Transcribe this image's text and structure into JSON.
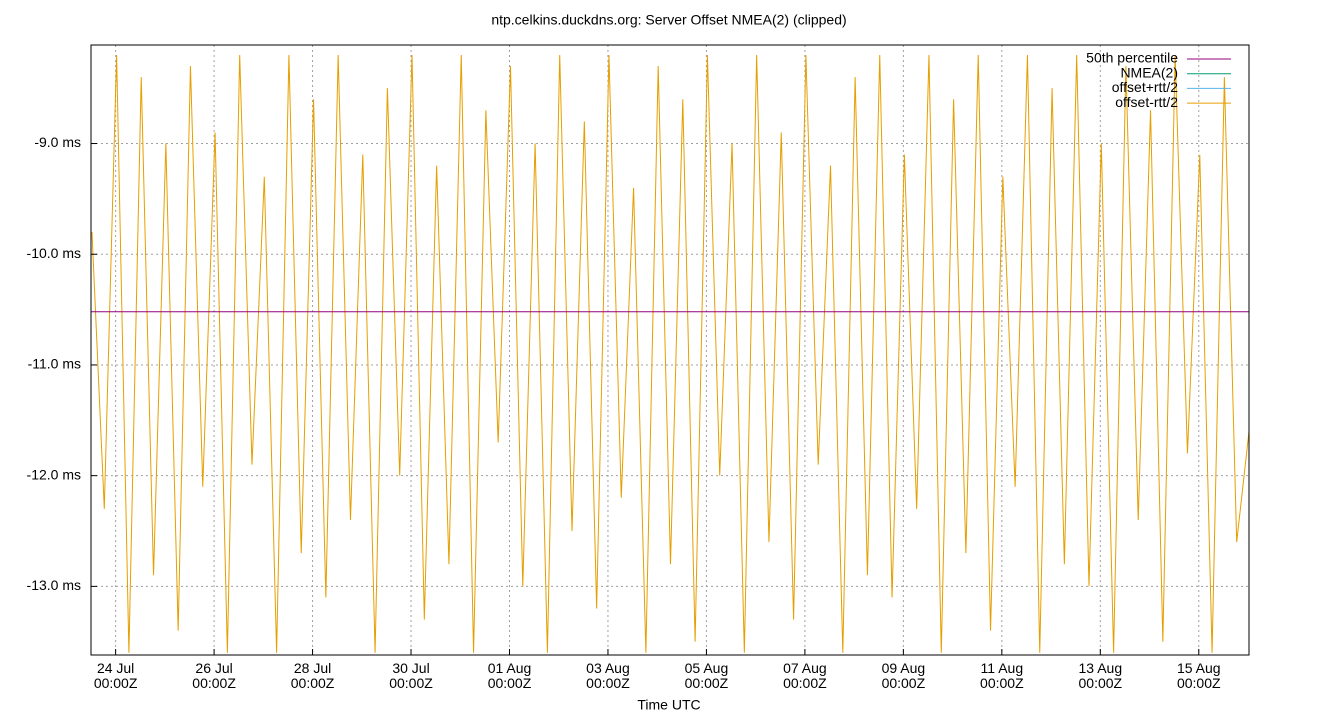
{
  "chart_data": {
    "type": "line",
    "title": "ntp.celkins.duckdns.org: Server Offset NMEA(2) (clipped)",
    "x_label": "Time UTC",
    "xlim": [
      23.5,
      47.02
    ],
    "xticks": [
      {
        "value": 24,
        "label": "24 Jul\n00:00Z"
      },
      {
        "value": 26,
        "label": "26 Jul\n00:00Z"
      },
      {
        "value": 28,
        "label": "28 Jul\n00:00Z"
      },
      {
        "value": 30,
        "label": "30 Jul\n00:00Z"
      },
      {
        "value": 32,
        "label": "01 Aug\n00:00Z"
      },
      {
        "value": 34,
        "label": "03 Aug\n00:00Z"
      },
      {
        "value": 36,
        "label": "05 Aug\n00:00Z"
      },
      {
        "value": 38,
        "label": "07 Aug\n00:00Z"
      },
      {
        "value": 40,
        "label": "09 Aug\n00:00Z"
      },
      {
        "value": 42,
        "label": "11 Aug\n00:00Z"
      },
      {
        "value": 44,
        "label": "13 Aug\n00:00Z"
      },
      {
        "value": 46,
        "label": "15 Aug\n00:00Z"
      }
    ],
    "ylim": [
      -13.62,
      -8.11
    ],
    "yticks": [
      {
        "value": -9.0,
        "label": "-9.0 ms"
      },
      {
        "value": -10.0,
        "label": "-10.0 ms"
      },
      {
        "value": -11.0,
        "label": "-11.0 ms"
      },
      {
        "value": -12.0,
        "label": "-12.0 ms"
      },
      {
        "value": -13.0,
        "label": "-13.0 ms"
      }
    ],
    "grid": true,
    "legend": "top-right",
    "series": [
      {
        "name": "50th percentile",
        "color": "#94007a",
        "x": [
          23.5,
          47.02
        ],
        "values": [
          -10.52,
          -10.52
        ]
      },
      {
        "name": "NMEA(2)",
        "color": "#009e73",
        "x": [],
        "values": []
      },
      {
        "name": "offset+rtt/2",
        "color": "#56b4e9",
        "x": [],
        "values": []
      },
      {
        "name": "offset-rtt/2",
        "color": "#e69f00",
        "x": [
          23.52,
          23.77,
          24.02,
          24.27,
          24.52,
          24.77,
          25.02,
          25.27,
          25.52,
          25.77,
          26.02,
          26.27,
          26.52,
          26.77,
          27.02,
          27.27,
          27.52,
          27.77,
          28.02,
          28.27,
          28.52,
          28.77,
          29.02,
          29.27,
          29.52,
          29.77,
          30.02,
          30.27,
          30.52,
          30.77,
          31.02,
          31.27,
          31.52,
          31.77,
          32.02,
          32.27,
          32.52,
          32.77,
          33.02,
          33.27,
          33.52,
          33.77,
          34.02,
          34.27,
          34.52,
          34.77,
          35.02,
          35.27,
          35.52,
          35.77,
          36.02,
          36.27,
          36.52,
          36.77,
          37.02,
          37.27,
          37.52,
          37.77,
          38.02,
          38.27,
          38.52,
          38.77,
          39.02,
          39.27,
          39.52,
          39.77,
          40.02,
          40.27,
          40.52,
          40.77,
          41.02,
          41.27,
          41.52,
          41.77,
          42.02,
          42.27,
          42.52,
          42.77,
          43.02,
          43.27,
          43.52,
          43.77,
          44.02,
          44.27,
          44.52,
          44.77,
          45.02,
          45.27,
          45.52,
          45.77,
          46.02,
          46.27,
          46.52,
          46.77,
          47.02
        ],
        "values": [
          -9.8,
          -12.3,
          -8.2,
          -13.6,
          -8.4,
          -12.9,
          -9.0,
          -13.4,
          -8.3,
          -12.1,
          -8.9,
          -13.6,
          -8.2,
          -11.9,
          -9.3,
          -13.6,
          -8.2,
          -12.7,
          -8.6,
          -13.1,
          -8.2,
          -12.4,
          -9.1,
          -13.6,
          -8.5,
          -12.0,
          -8.2,
          -13.3,
          -9.2,
          -12.8,
          -8.2,
          -13.6,
          -8.7,
          -11.7,
          -8.3,
          -13.0,
          -9.0,
          -13.6,
          -8.2,
          -12.5,
          -8.8,
          -13.2,
          -8.2,
          -12.2,
          -9.4,
          -13.6,
          -8.3,
          -12.8,
          -8.6,
          -13.5,
          -8.2,
          -12.0,
          -9.0,
          -13.6,
          -8.2,
          -12.6,
          -8.9,
          -13.3,
          -8.2,
          -11.9,
          -9.2,
          -13.6,
          -8.4,
          -12.9,
          -8.2,
          -13.1,
          -9.1,
          -12.3,
          -8.2,
          -13.6,
          -8.6,
          -12.7,
          -8.2,
          -13.4,
          -9.3,
          -12.1,
          -8.2,
          -13.6,
          -8.5,
          -12.8,
          -8.2,
          -13.0,
          -9.0,
          -13.6,
          -8.3,
          -12.4,
          -8.7,
          -13.5,
          -8.2,
          -11.8,
          -9.1,
          -13.6,
          -8.4,
          -12.6,
          -11.6
        ]
      }
    ]
  }
}
